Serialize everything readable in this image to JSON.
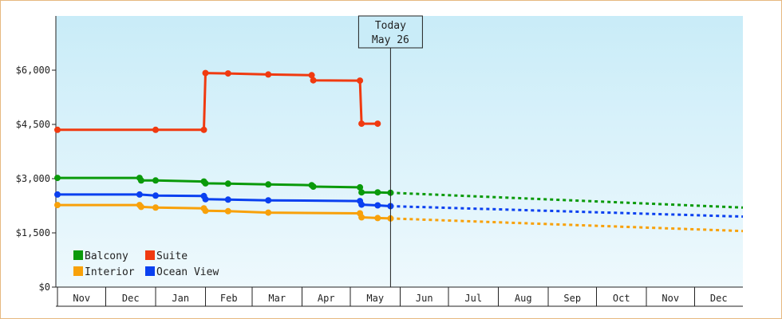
{
  "chart_data": {
    "type": "line",
    "title": "",
    "xlabel": "",
    "ylabel": "",
    "ylim": [
      0,
      7500
    ],
    "y_ticks": [
      "$0",
      "$1,500",
      "$3,000",
      "$4,500",
      "$6,000"
    ],
    "y_tick_values": [
      0,
      1500,
      3000,
      4500,
      6000
    ],
    "x_range": [
      "2023-10-31",
      "2024-12-31"
    ],
    "month_ticks": [
      {
        "label": "Nov",
        "start": "2023-11-01",
        "end": "2023-12-01"
      },
      {
        "label": "Dec",
        "start": "2023-12-01",
        "end": "2024-01-01"
      },
      {
        "label": "Jan",
        "start": "2024-01-01",
        "end": "2024-02-01"
      },
      {
        "label": "Feb",
        "start": "2024-02-01",
        "end": "2024-03-01"
      },
      {
        "label": "Mar",
        "start": "2024-03-01",
        "end": "2024-04-01"
      },
      {
        "label": "Apr",
        "start": "2024-04-01",
        "end": "2024-05-01"
      },
      {
        "label": "May",
        "start": "2024-05-01",
        "end": "2024-06-01"
      },
      {
        "label": "Jun",
        "start": "2024-06-01",
        "end": "2024-07-01"
      },
      {
        "label": "Jul",
        "start": "2024-07-01",
        "end": "2024-08-01"
      },
      {
        "label": "Aug",
        "start": "2024-08-01",
        "end": "2024-09-01"
      },
      {
        "label": "Sep",
        "start": "2024-09-01",
        "end": "2024-10-01"
      },
      {
        "label": "Oct",
        "start": "2024-10-01",
        "end": "2024-11-01"
      },
      {
        "label": "Nov",
        "start": "2024-11-01",
        "end": "2024-12-01"
      },
      {
        "label": "Dec",
        "start": "2024-12-01",
        "end": "2024-12-31"
      }
    ],
    "today": {
      "date": "2024-05-26",
      "label_line1": "Today",
      "label_line2": "May 26"
    },
    "legend_position": "bottom-left",
    "series": [
      {
        "name": "Balcony",
        "color": "#0a9a0a",
        "points": [
          {
            "x": "2023-11-01",
            "y": 3020
          },
          {
            "x": "2023-12-22",
            "y": 3020
          },
          {
            "x": "2023-12-23",
            "y": 2950
          },
          {
            "x": "2024-01-01",
            "y": 2950
          },
          {
            "x": "2024-01-31",
            "y": 2920
          },
          {
            "x": "2024-02-01",
            "y": 2870
          },
          {
            "x": "2024-02-15",
            "y": 2860
          },
          {
            "x": "2024-03-11",
            "y": 2840
          },
          {
            "x": "2024-04-07",
            "y": 2820
          },
          {
            "x": "2024-04-08",
            "y": 2780
          },
          {
            "x": "2024-05-07",
            "y": 2760
          },
          {
            "x": "2024-05-08",
            "y": 2620
          },
          {
            "x": "2024-05-18",
            "y": 2620
          },
          {
            "x": "2024-05-26",
            "y": 2610
          }
        ],
        "forecast": [
          {
            "x": "2024-05-26",
            "y": 2610
          },
          {
            "x": "2024-12-31",
            "y": 2200
          }
        ]
      },
      {
        "name": "Suite",
        "color": "#f03a10",
        "points": [
          {
            "x": "2023-11-01",
            "y": 4350
          },
          {
            "x": "2024-01-01",
            "y": 4350
          },
          {
            "x": "2024-01-31",
            "y": 4350
          },
          {
            "x": "2024-02-01",
            "y": 5920
          },
          {
            "x": "2024-02-15",
            "y": 5910
          },
          {
            "x": "2024-03-11",
            "y": 5880
          },
          {
            "x": "2024-04-07",
            "y": 5860
          },
          {
            "x": "2024-04-08",
            "y": 5720
          },
          {
            "x": "2024-05-07",
            "y": 5710
          },
          {
            "x": "2024-05-08",
            "y": 4520
          },
          {
            "x": "2024-05-18",
            "y": 4520
          }
        ],
        "forecast": []
      },
      {
        "name": "Interior",
        "color": "#f8a10a",
        "points": [
          {
            "x": "2023-11-01",
            "y": 2270
          },
          {
            "x": "2023-12-22",
            "y": 2270
          },
          {
            "x": "2023-12-23",
            "y": 2220
          },
          {
            "x": "2024-01-01",
            "y": 2200
          },
          {
            "x": "2024-01-31",
            "y": 2180
          },
          {
            "x": "2024-02-01",
            "y": 2110
          },
          {
            "x": "2024-02-15",
            "y": 2100
          },
          {
            "x": "2024-03-11",
            "y": 2060
          },
          {
            "x": "2024-05-07",
            "y": 2040
          },
          {
            "x": "2024-05-08",
            "y": 1930
          },
          {
            "x": "2024-05-18",
            "y": 1910
          },
          {
            "x": "2024-05-26",
            "y": 1900
          }
        ],
        "forecast": [
          {
            "x": "2024-05-26",
            "y": 1900
          },
          {
            "x": "2024-12-31",
            "y": 1550
          }
        ]
      },
      {
        "name": "Ocean View",
        "color": "#0a40f0",
        "points": [
          {
            "x": "2023-11-01",
            "y": 2560
          },
          {
            "x": "2023-12-22",
            "y": 2560
          },
          {
            "x": "2024-01-01",
            "y": 2530
          },
          {
            "x": "2024-01-31",
            "y": 2520
          },
          {
            "x": "2024-02-01",
            "y": 2430
          },
          {
            "x": "2024-02-15",
            "y": 2420
          },
          {
            "x": "2024-03-11",
            "y": 2400
          },
          {
            "x": "2024-05-07",
            "y": 2380
          },
          {
            "x": "2024-05-08",
            "y": 2280
          },
          {
            "x": "2024-05-18",
            "y": 2260
          },
          {
            "x": "2024-05-26",
            "y": 2240
          }
        ],
        "forecast": [
          {
            "x": "2024-05-26",
            "y": 2240
          },
          {
            "x": "2024-12-31",
            "y": 1950
          }
        ]
      }
    ],
    "legend": [
      {
        "label": "Balcony",
        "color": "#0a9a0a"
      },
      {
        "label": "Suite",
        "color": "#f03a10"
      },
      {
        "label": "Interior",
        "color": "#f8a10a"
      },
      {
        "label": "Ocean View",
        "color": "#0a40f0"
      }
    ]
  },
  "colors": {
    "plot_bg_top": "#c9ecf8",
    "plot_bg_bottom": "#eef9fd",
    "frame_border": "#e6b980",
    "axis": "#222222"
  }
}
